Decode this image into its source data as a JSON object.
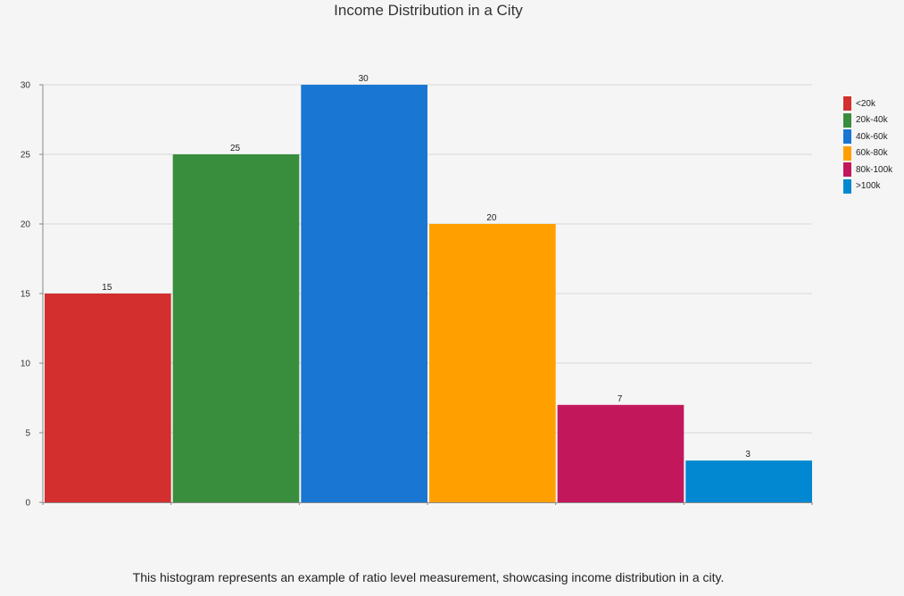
{
  "chart_data": {
    "type": "bar",
    "title": "Income Distribution in a City",
    "categories": [
      "<20k",
      "20k-40k",
      "40k-60k",
      "60k-80k",
      "80k-100k",
      ">100k"
    ],
    "values": [
      15,
      25,
      30,
      20,
      7,
      3
    ],
    "colors": [
      "#d32f2f",
      "#388e3c",
      "#1976d2",
      "#ffa000",
      "#c2185b",
      "#0288d1"
    ],
    "ylim": [
      0,
      30
    ],
    "yticks": [
      "0",
      "5",
      "10",
      "15",
      "20",
      "25",
      "30"
    ],
    "grid": true,
    "legend_position": "right",
    "caption": "This histogram represents an example of ratio level measurement, showcasing income distribution in a city."
  }
}
